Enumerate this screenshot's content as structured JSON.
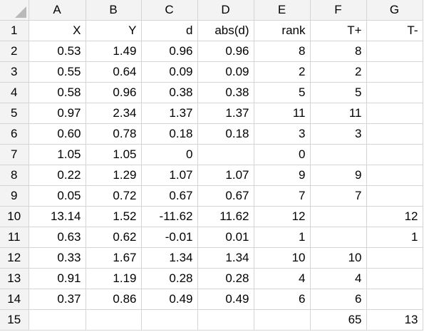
{
  "columns": [
    "A",
    "B",
    "C",
    "D",
    "E",
    "F",
    "G"
  ],
  "rows": [
    {
      "num": "1",
      "cells": [
        "X",
        "Y",
        "d",
        "abs(d)",
        "rank",
        "T+",
        "T-"
      ]
    },
    {
      "num": "2",
      "cells": [
        "0.53",
        "1.49",
        "0.96",
        "0.96",
        "8",
        "8",
        ""
      ]
    },
    {
      "num": "3",
      "cells": [
        "0.55",
        "0.64",
        "0.09",
        "0.09",
        "2",
        "2",
        ""
      ]
    },
    {
      "num": "4",
      "cells": [
        "0.58",
        "0.96",
        "0.38",
        "0.38",
        "5",
        "5",
        ""
      ]
    },
    {
      "num": "5",
      "cells": [
        "0.97",
        "2.34",
        "1.37",
        "1.37",
        "11",
        "11",
        ""
      ]
    },
    {
      "num": "6",
      "cells": [
        "0.60",
        "0.78",
        "0.18",
        "0.18",
        "3",
        "3",
        ""
      ]
    },
    {
      "num": "7",
      "cells": [
        "1.05",
        "1.05",
        "0",
        "",
        "0",
        "",
        ""
      ]
    },
    {
      "num": "8",
      "cells": [
        "0.22",
        "1.29",
        "1.07",
        "1.07",
        "9",
        "9",
        ""
      ]
    },
    {
      "num": "9",
      "cells": [
        "0.05",
        "0.72",
        "0.67",
        "0.67",
        "7",
        "7",
        ""
      ]
    },
    {
      "num": "10",
      "cells": [
        "13.14",
        "1.52",
        "-11.62",
        "11.62",
        "12",
        "",
        "12"
      ]
    },
    {
      "num": "11",
      "cells": [
        "0.63",
        "0.62",
        "-0.01",
        "0.01",
        "1",
        "",
        "1"
      ]
    },
    {
      "num": "12",
      "cells": [
        "0.33",
        "1.67",
        "1.34",
        "1.34",
        "10",
        "10",
        ""
      ]
    },
    {
      "num": "13",
      "cells": [
        "0.91",
        "1.19",
        "0.28",
        "0.28",
        "4",
        "4",
        ""
      ]
    },
    {
      "num": "14",
      "cells": [
        "0.37",
        "0.86",
        "0.49",
        "0.49",
        "6",
        "6",
        ""
      ]
    },
    {
      "num": "15",
      "cells": [
        "",
        "",
        "",
        "",
        "",
        "65",
        "13"
      ]
    }
  ]
}
